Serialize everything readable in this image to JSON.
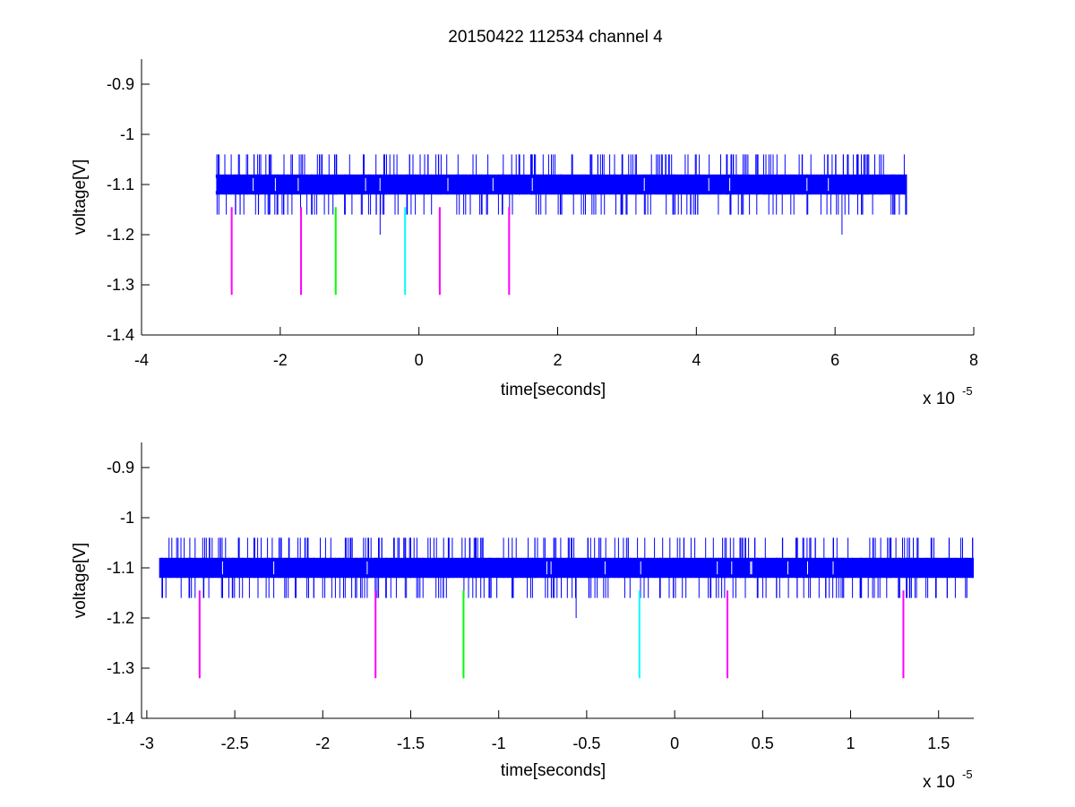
{
  "figure": {
    "title": "20150422 112534 channel 4",
    "background": "#ffffff"
  },
  "chart_data": [
    {
      "type": "line",
      "title": "20150422 112534 channel 4",
      "xlabel": "time[seconds]",
      "ylabel": "voltage[V]",
      "x_multiplier_label": {
        "base": "x 10",
        "exponent": "-5"
      },
      "xlim": [
        -4,
        8
      ],
      "ylim": [
        -1.4,
        -0.85
      ],
      "xticks": [
        -4,
        -2,
        0,
        2,
        4,
        6,
        8
      ],
      "xtick_labels": [
        "-4",
        "-2",
        "0",
        "2",
        "4",
        "6",
        "8"
      ],
      "yticks": [
        -1.4,
        -1.3,
        -1.2,
        -1.1,
        -1.0,
        -0.9
      ],
      "ytick_labels": [
        "-1.4",
        "-1.3",
        "-1.2",
        "-1.1",
        "-1",
        "-0.9"
      ],
      "grid": false,
      "signal": {
        "color": "#0000ff",
        "x_start": -2.93,
        "x_end": 7.03,
        "band_low": -1.12,
        "band_high": -1.08,
        "spike_high": -1.04,
        "spike_low": -1.16,
        "outlier_low": -1.2,
        "outlier_times": [
          -0.56,
          6.1
        ]
      },
      "markers": [
        {
          "x": -2.7,
          "color": "#ff00ff",
          "y_top": -1.145,
          "y_bottom": -1.32
        },
        {
          "x": -1.7,
          "color": "#ff00ff",
          "y_top": -1.145,
          "y_bottom": -1.32
        },
        {
          "x": -1.2,
          "color": "#00ff00",
          "y_top": -1.145,
          "y_bottom": -1.32
        },
        {
          "x": -0.2,
          "color": "#00ffff",
          "y_top": -1.145,
          "y_bottom": -1.32
        },
        {
          "x": 0.3,
          "color": "#ff00ff",
          "y_top": -1.145,
          "y_bottom": -1.32
        },
        {
          "x": 1.3,
          "color": "#ff00ff",
          "y_top": -1.145,
          "y_bottom": -1.32
        }
      ]
    },
    {
      "type": "line",
      "title": "",
      "xlabel": "time[seconds]",
      "ylabel": "voltage[V]",
      "x_multiplier_label": {
        "base": "x 10",
        "exponent": "-5"
      },
      "xlim": [
        -3.03,
        1.7
      ],
      "ylim": [
        -1.4,
        -0.85
      ],
      "xticks": [
        -3,
        -2.5,
        -2,
        -1.5,
        -1,
        -0.5,
        0,
        0.5,
        1,
        1.5
      ],
      "xtick_labels": [
        "-3",
        "-2.5",
        "-2",
        "-1.5",
        "-1",
        "-0.5",
        "0",
        "0.5",
        "1",
        "1.5"
      ],
      "yticks": [
        -1.4,
        -1.3,
        -1.2,
        -1.1,
        -1.0,
        -0.9
      ],
      "ytick_labels": [
        "-1.4",
        "-1.3",
        "-1.2",
        "-1.1",
        "-1",
        "-0.9"
      ],
      "grid": false,
      "signal": {
        "color": "#0000ff",
        "x_start": -2.93,
        "x_end": 1.7,
        "band_low": -1.12,
        "band_high": -1.08,
        "spike_high": -1.04,
        "spike_low": -1.16,
        "outlier_low": -1.2,
        "outlier_times": [
          -0.56
        ]
      },
      "markers": [
        {
          "x": -2.7,
          "color": "#ff00ff",
          "y_top": -1.145,
          "y_bottom": -1.32
        },
        {
          "x": -1.7,
          "color": "#ff00ff",
          "y_top": -1.145,
          "y_bottom": -1.32
        },
        {
          "x": -1.2,
          "color": "#00ff00",
          "y_top": -1.145,
          "y_bottom": -1.32
        },
        {
          "x": -0.2,
          "color": "#00ffff",
          "y_top": -1.145,
          "y_bottom": -1.32
        },
        {
          "x": 0.3,
          "color": "#ff00ff",
          "y_top": -1.145,
          "y_bottom": -1.32
        },
        {
          "x": 1.3,
          "color": "#ff00ff",
          "y_top": -1.145,
          "y_bottom": -1.32
        }
      ]
    }
  ]
}
